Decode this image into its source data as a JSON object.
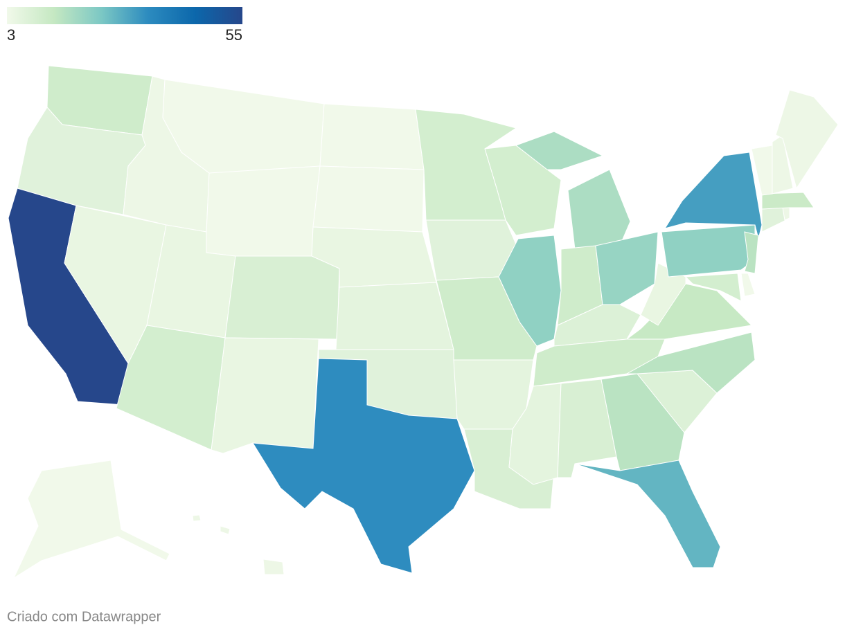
{
  "chart_data": {
    "type": "choropleth",
    "colorlim": [
      3,
      55
    ],
    "colors": [
      "#f1f9ea",
      "#c5e8c2",
      "#7cc8c4",
      "#2c8bbf",
      "#0c67ab",
      "#26478b"
    ],
    "values": [
      11,
      7,
      55,
      5,
      4,
      3,
      3,
      5,
      3,
      3,
      5,
      9,
      6,
      7,
      5,
      10,
      34,
      10,
      7,
      11,
      6,
      9,
      10,
      21,
      17,
      11,
      20,
      8,
      11,
      6,
      9,
      15,
      27,
      8,
      15,
      13,
      5,
      21,
      31,
      15,
      10,
      3,
      7,
      4,
      12,
      3,
      4,
      4,
      3,
      4
    ],
    "source": "Criado com Datawrapper"
  }
}
